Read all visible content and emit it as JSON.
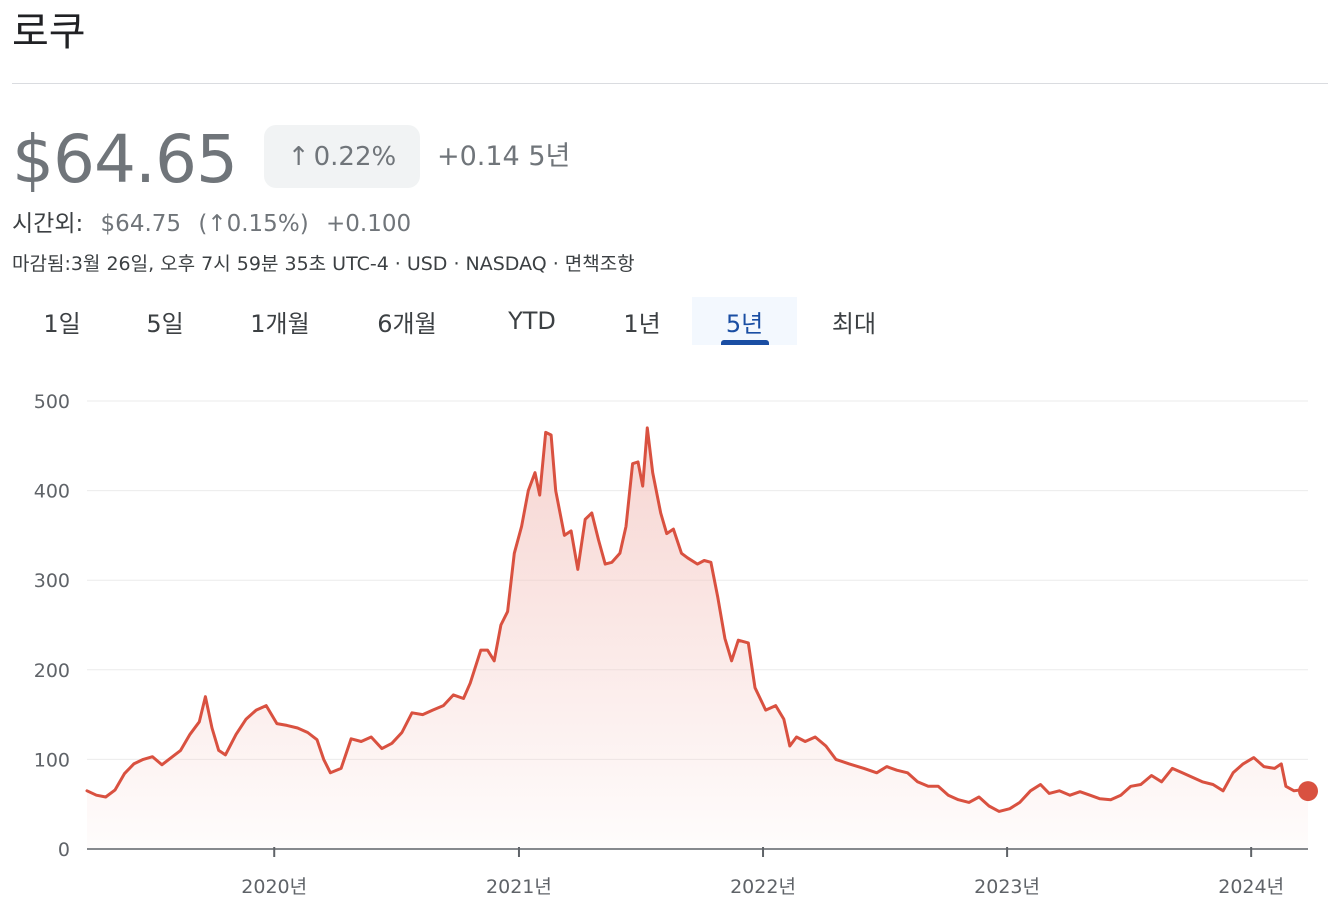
{
  "header": {
    "title": "로쿠"
  },
  "quote": {
    "price": "$64.65",
    "change_arrow": "↑",
    "change_pct": "0.22%",
    "change_abs": "+0.14 5년",
    "after_hours_label": "시간외:",
    "after_hours_price": "$64.75",
    "after_hours_pct_open": "(",
    "after_hours_arrow": "↑",
    "after_hours_pct": "0.15%",
    "after_hours_pct_close": ")",
    "after_hours_abs": "+0.100",
    "meta": {
      "closed": "마감됨:3월 26일, 오후 7시 59분 35초 UTC-4",
      "currency": "USD",
      "exchange": "NASDAQ",
      "disclaimer": "면책조항",
      "separator": "·"
    }
  },
  "tabs": [
    {
      "label": "1일",
      "active": false
    },
    {
      "label": "5일",
      "active": false
    },
    {
      "label": "1개월",
      "active": false
    },
    {
      "label": "6개월",
      "active": false
    },
    {
      "label": "YTD",
      "active": false
    },
    {
      "label": "1년",
      "active": false
    },
    {
      "label": "5년",
      "active": true
    },
    {
      "label": "최대",
      "active": false
    }
  ],
  "colors": {
    "line": "#d95140",
    "fill": "#f4c7c2",
    "grid": "#ebebeb",
    "tab_active": "#1a4ea3",
    "text_muted": "#70757a"
  },
  "chart_data": {
    "type": "area",
    "yticks": [
      0,
      100,
      200,
      300,
      400,
      500
    ],
    "ylim": [
      0,
      500
    ],
    "xlim": [
      "2019-03-27",
      "2024-03-26"
    ],
    "xticks": [
      {
        "date": "2020-01-01",
        "label": "2020년"
      },
      {
        "date": "2021-01-01",
        "label": "2021년"
      },
      {
        "date": "2022-01-01",
        "label": "2022년"
      },
      {
        "date": "2023-01-01",
        "label": "2023년"
      },
      {
        "date": "2024-01-01",
        "label": "2024년"
      }
    ],
    "grid": true,
    "series": [
      {
        "points": [
          [
            "2019-03-27",
            65
          ],
          [
            "2019-04-10",
            60
          ],
          [
            "2019-04-24",
            58
          ],
          [
            "2019-05-08",
            66
          ],
          [
            "2019-05-22",
            84
          ],
          [
            "2019-06-05",
            95
          ],
          [
            "2019-06-19",
            100
          ],
          [
            "2019-07-03",
            103
          ],
          [
            "2019-07-17",
            94
          ],
          [
            "2019-07-31",
            102
          ],
          [
            "2019-08-14",
            110
          ],
          [
            "2019-08-28",
            128
          ],
          [
            "2019-09-11",
            142
          ],
          [
            "2019-09-20",
            170
          ],
          [
            "2019-09-30",
            135
          ],
          [
            "2019-10-10",
            110
          ],
          [
            "2019-10-20",
            105
          ],
          [
            "2019-11-05",
            128
          ],
          [
            "2019-11-20",
            145
          ],
          [
            "2019-12-05",
            155
          ],
          [
            "2019-12-20",
            160
          ],
          [
            "2020-01-05",
            140
          ],
          [
            "2020-01-20",
            138
          ],
          [
            "2020-02-05",
            135
          ],
          [
            "2020-02-20",
            130
          ],
          [
            "2020-03-05",
            122
          ],
          [
            "2020-03-15",
            100
          ],
          [
            "2020-03-25",
            85
          ],
          [
            "2020-04-10",
            90
          ],
          [
            "2020-04-25",
            123
          ],
          [
            "2020-05-10",
            120
          ],
          [
            "2020-05-25",
            125
          ],
          [
            "2020-06-10",
            112
          ],
          [
            "2020-06-25",
            118
          ],
          [
            "2020-07-10",
            130
          ],
          [
            "2020-07-25",
            152
          ],
          [
            "2020-08-10",
            150
          ],
          [
            "2020-08-25",
            155
          ],
          [
            "2020-09-10",
            160
          ],
          [
            "2020-09-25",
            172
          ],
          [
            "2020-10-10",
            168
          ],
          [
            "2020-10-20",
            185
          ],
          [
            "2020-11-05",
            222
          ],
          [
            "2020-11-15",
            222
          ],
          [
            "2020-11-25",
            210
          ],
          [
            "2020-12-05",
            250
          ],
          [
            "2020-12-15",
            265
          ],
          [
            "2020-12-25",
            330
          ],
          [
            "2021-01-05",
            360
          ],
          [
            "2021-01-15",
            400
          ],
          [
            "2021-01-25",
            420
          ],
          [
            "2021-02-01",
            395
          ],
          [
            "2021-02-10",
            465
          ],
          [
            "2021-02-18",
            462
          ],
          [
            "2021-02-25",
            400
          ],
          [
            "2021-03-10",
            350
          ],
          [
            "2021-03-20",
            355
          ],
          [
            "2021-03-30",
            312
          ],
          [
            "2021-04-10",
            368
          ],
          [
            "2021-04-20",
            375
          ],
          [
            "2021-04-30",
            345
          ],
          [
            "2021-05-10",
            318
          ],
          [
            "2021-05-20",
            320
          ],
          [
            "2021-06-01",
            330
          ],
          [
            "2021-06-10",
            360
          ],
          [
            "2021-06-20",
            430
          ],
          [
            "2021-06-28",
            432
          ],
          [
            "2021-07-05",
            405
          ],
          [
            "2021-07-12",
            470
          ],
          [
            "2021-07-20",
            420
          ],
          [
            "2021-08-01",
            375
          ],
          [
            "2021-08-10",
            352
          ],
          [
            "2021-08-20",
            357
          ],
          [
            "2021-09-01",
            330
          ],
          [
            "2021-09-10",
            325
          ],
          [
            "2021-09-25",
            318
          ],
          [
            "2021-10-05",
            322
          ],
          [
            "2021-10-15",
            320
          ],
          [
            "2021-10-25",
            282
          ],
          [
            "2021-11-05",
            235
          ],
          [
            "2021-11-15",
            210
          ],
          [
            "2021-11-25",
            233
          ],
          [
            "2021-12-10",
            230
          ],
          [
            "2021-12-20",
            180
          ],
          [
            "2022-01-05",
            155
          ],
          [
            "2022-01-20",
            160
          ],
          [
            "2022-02-01",
            145
          ],
          [
            "2022-02-10",
            115
          ],
          [
            "2022-02-20",
            125
          ],
          [
            "2022-03-05",
            120
          ],
          [
            "2022-03-20",
            125
          ],
          [
            "2022-04-05",
            115
          ],
          [
            "2022-04-20",
            100
          ],
          [
            "2022-05-10",
            95
          ],
          [
            "2022-06-01",
            90
          ],
          [
            "2022-06-20",
            85
          ],
          [
            "2022-07-05",
            92
          ],
          [
            "2022-07-20",
            88
          ],
          [
            "2022-08-05",
            85
          ],
          [
            "2022-08-20",
            75
          ],
          [
            "2022-09-05",
            70
          ],
          [
            "2022-09-20",
            70
          ],
          [
            "2022-10-05",
            60
          ],
          [
            "2022-10-20",
            55
          ],
          [
            "2022-11-05",
            52
          ],
          [
            "2022-11-20",
            58
          ],
          [
            "2022-12-05",
            48
          ],
          [
            "2022-12-20",
            42
          ],
          [
            "2023-01-05",
            45
          ],
          [
            "2023-01-20",
            52
          ],
          [
            "2023-02-05",
            65
          ],
          [
            "2023-02-20",
            72
          ],
          [
            "2023-03-05",
            62
          ],
          [
            "2023-03-20",
            65
          ],
          [
            "2023-04-05",
            60
          ],
          [
            "2023-04-20",
            64
          ],
          [
            "2023-05-05",
            60
          ],
          [
            "2023-05-20",
            56
          ],
          [
            "2023-06-05",
            55
          ],
          [
            "2023-06-20",
            60
          ],
          [
            "2023-07-05",
            70
          ],
          [
            "2023-07-20",
            72
          ],
          [
            "2023-08-05",
            82
          ],
          [
            "2023-08-20",
            75
          ],
          [
            "2023-09-05",
            90
          ],
          [
            "2023-09-20",
            85
          ],
          [
            "2023-10-05",
            80
          ],
          [
            "2023-10-20",
            75
          ],
          [
            "2023-11-05",
            72
          ],
          [
            "2023-11-20",
            65
          ],
          [
            "2023-12-05",
            85
          ],
          [
            "2023-12-20",
            95
          ],
          [
            "2024-01-05",
            102
          ],
          [
            "2024-01-20",
            92
          ],
          [
            "2024-02-05",
            90
          ],
          [
            "2024-02-15",
            95
          ],
          [
            "2024-02-22",
            70
          ],
          [
            "2024-03-05",
            65
          ],
          [
            "2024-03-15",
            66
          ],
          [
            "2024-03-26",
            64.65
          ]
        ]
      }
    ]
  }
}
